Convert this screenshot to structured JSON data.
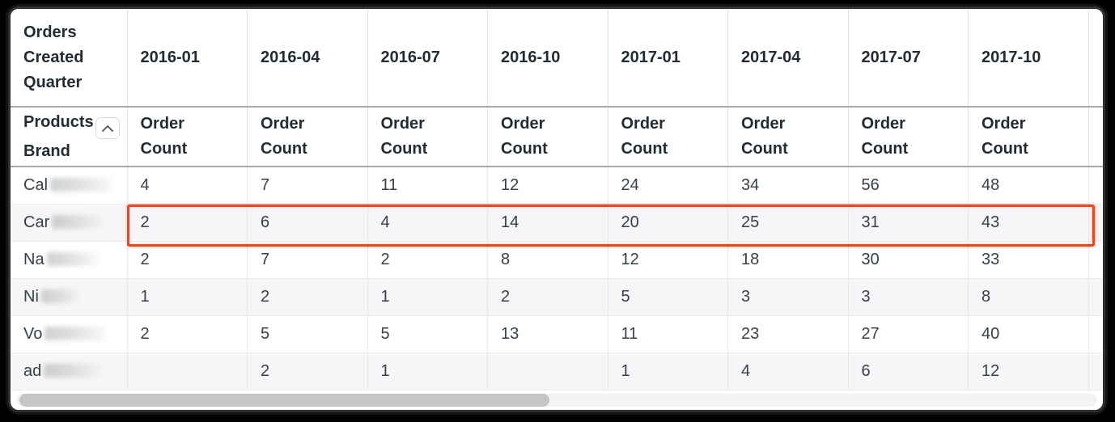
{
  "table": {
    "corner_header": "Orders Created Quarter",
    "row_header_words": [
      "Products",
      "Brand"
    ],
    "collapse_icon": "chevron-up-icon",
    "measure_header": "Order Count",
    "quarter_columns": [
      "2016-01",
      "2016-04",
      "2016-07",
      "2016-10",
      "2017-01",
      "2017-04",
      "2017-07",
      "2017-10"
    ],
    "rows": [
      {
        "label_prefix": "Cal",
        "label_redacted": true,
        "redact_width": 76,
        "highlighted": false,
        "values": [
          "4",
          "7",
          "11",
          "12",
          "24",
          "34",
          "56",
          "48"
        ]
      },
      {
        "label_prefix": "Car",
        "label_redacted": true,
        "redact_width": 64,
        "highlighted": true,
        "values": [
          "2",
          "6",
          "4",
          "14",
          "20",
          "25",
          "31",
          "43"
        ]
      },
      {
        "label_prefix": "Na",
        "label_redacted": true,
        "redact_width": 62,
        "highlighted": false,
        "values": [
          "2",
          "7",
          "2",
          "8",
          "12",
          "18",
          "30",
          "33"
        ]
      },
      {
        "label_prefix": "Ni",
        "label_redacted": true,
        "redact_width": 48,
        "highlighted": false,
        "values": [
          "1",
          "2",
          "1",
          "2",
          "5",
          "3",
          "3",
          "8"
        ]
      },
      {
        "label_prefix": "Vo",
        "label_redacted": true,
        "redact_width": 76,
        "highlighted": false,
        "values": [
          "2",
          "5",
          "5",
          "13",
          "11",
          "23",
          "27",
          "40"
        ]
      },
      {
        "label_prefix": "ad",
        "label_redacted": true,
        "redact_width": 74,
        "highlighted": false,
        "values": [
          "",
          "2",
          "1",
          "",
          "1",
          "4",
          "6",
          "12"
        ]
      }
    ]
  },
  "annotation": {
    "type": "row-highlight",
    "highlighted_row_prefix": "Car",
    "highlight_border_color": "#e8481f"
  },
  "scrollbar": {
    "orientation": "horizontal"
  }
}
